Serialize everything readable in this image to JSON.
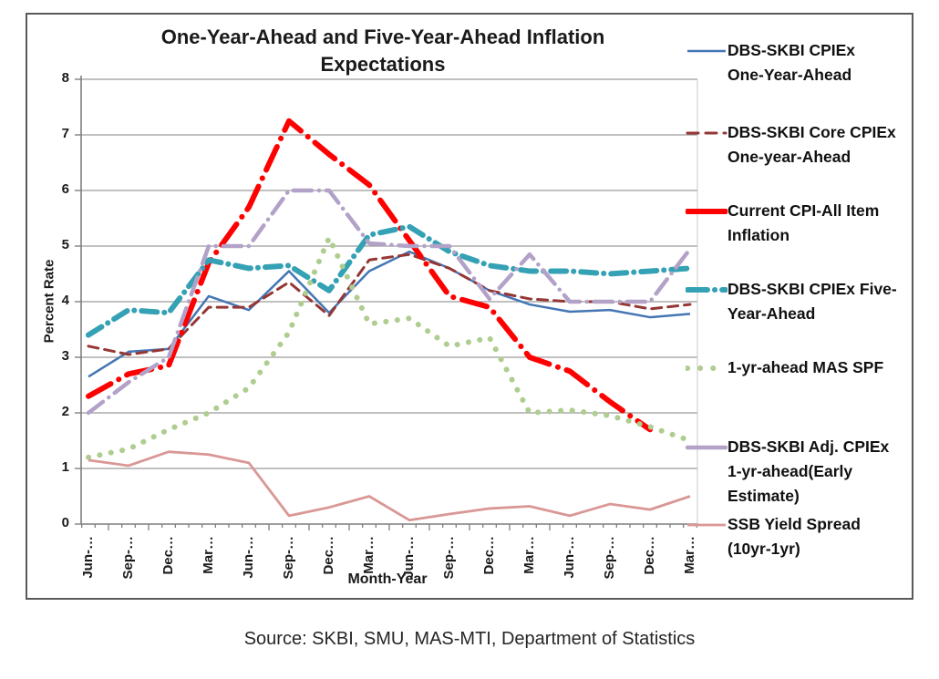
{
  "chart_data": {
    "type": "line",
    "title_lines": [
      "One-Year-Ahead and Five-Year-Ahead Inflation",
      "Expectations"
    ],
    "ylabel": "Percent Rate",
    "xlabel": "Month-Year",
    "ylim": [
      0,
      8
    ],
    "ytick_step": 1,
    "grid": true,
    "legend_position": "right",
    "categories": [
      "Jun-…",
      "Sep-…",
      "Dec…",
      "Mar…",
      "Jun-…",
      "Sep-…",
      "Dec…",
      "Mar…",
      "Jun-…",
      "Sep-…",
      "Dec…",
      "Mar…",
      "Jun-…",
      "Sep-…",
      "Dec…",
      "Mar…"
    ],
    "series": [
      {
        "name": "DBS-SKBI CPIEx One-Year-Ahead",
        "legend_lines": [
          "DBS-SKBI CPIEx",
          "One-Year-Ahead"
        ],
        "color": "#4476B4",
        "line_style": "solid",
        "line_width": 2.5,
        "values": [
          2.65,
          3.1,
          3.15,
          4.1,
          3.85,
          4.55,
          3.8,
          4.55,
          4.9,
          4.6,
          4.2,
          3.95,
          3.82,
          3.85,
          3.72,
          3.78
        ]
      },
      {
        "name": "DBS-SKBI Core CPIEx One-year-Ahead",
        "legend_lines": [
          "DBS-SKBI Core CPIEx",
          "One-year-Ahead"
        ],
        "color": "#953735",
        "line_style": "dash",
        "line_width": 3,
        "values": [
          3.2,
          3.05,
          3.15,
          3.9,
          3.9,
          4.35,
          3.75,
          4.75,
          4.85,
          4.6,
          4.2,
          4.05,
          4.0,
          4.0,
          3.87,
          3.95
        ]
      },
      {
        "name": "Current CPI-All Item Inflation",
        "legend_lines": [
          "Current CPI-All Item",
          "Inflation"
        ],
        "color": "#FF0000",
        "line_style": "dash-dot",
        "line_width": 6,
        "values": [
          2.3,
          2.7,
          2.85,
          4.7,
          5.7,
          7.25,
          6.65,
          6.1,
          5.1,
          4.1,
          3.9,
          3.0,
          2.75,
          2.2,
          1.7,
          null
        ]
      },
      {
        "name": "DBS-SKBI CPIEx Five-Year-Ahead",
        "legend_lines": [
          "DBS-SKBI CPIEx Five-",
          "Year-Ahead"
        ],
        "color": "#35A1B4",
        "line_style": "long-dash-dot",
        "line_width": 6,
        "values": [
          3.4,
          3.85,
          3.8,
          4.75,
          4.6,
          4.65,
          4.2,
          5.2,
          5.35,
          4.9,
          4.65,
          4.55,
          4.55,
          4.5,
          4.55,
          4.6
        ]
      },
      {
        "name": "1-yr-ahead MAS SPF",
        "legend_lines": [
          "1-yr-ahead MAS SPF"
        ],
        "color": "#AFCD90",
        "line_style": "dot",
        "line_width": 6,
        "values": [
          1.2,
          1.35,
          1.7,
          2.0,
          2.45,
          3.45,
          5.15,
          3.6,
          3.7,
          3.2,
          3.35,
          2.0,
          2.05,
          1.95,
          1.75,
          1.5
        ]
      },
      {
        "name": "DBS-SKBI Adj. CPIEx 1-yr-ahead(Early Estimate)",
        "legend_lines": [
          "DBS-SKBI Adj. CPIEx",
          "1-yr-ahead(Early",
          "Estimate)"
        ],
        "color": "#B3A2C8",
        "line_style": "dash-dot-purple",
        "line_width": 4.5,
        "values": [
          2.0,
          2.55,
          3.0,
          5.0,
          5.0,
          6.0,
          6.0,
          5.05,
          5.0,
          5.0,
          4.05,
          4.85,
          4.0,
          4.0,
          4.0,
          4.95
        ]
      },
      {
        "name": "SSB Yield Spread (10yr-1yr)",
        "legend_lines": [
          "SSB Yield Spread",
          "(10yr-1yr)"
        ],
        "color": "#D99795",
        "line_style": "solid",
        "line_width": 2.8,
        "values": [
          1.15,
          1.05,
          1.3,
          1.25,
          1.1,
          0.15,
          0.3,
          0.5,
          0.07,
          0.18,
          0.28,
          0.32,
          0.15,
          0.36,
          0.26,
          0.5
        ]
      }
    ]
  },
  "source_note": "Source: SKBI, SMU, MAS-MTI, Department of Statistics"
}
